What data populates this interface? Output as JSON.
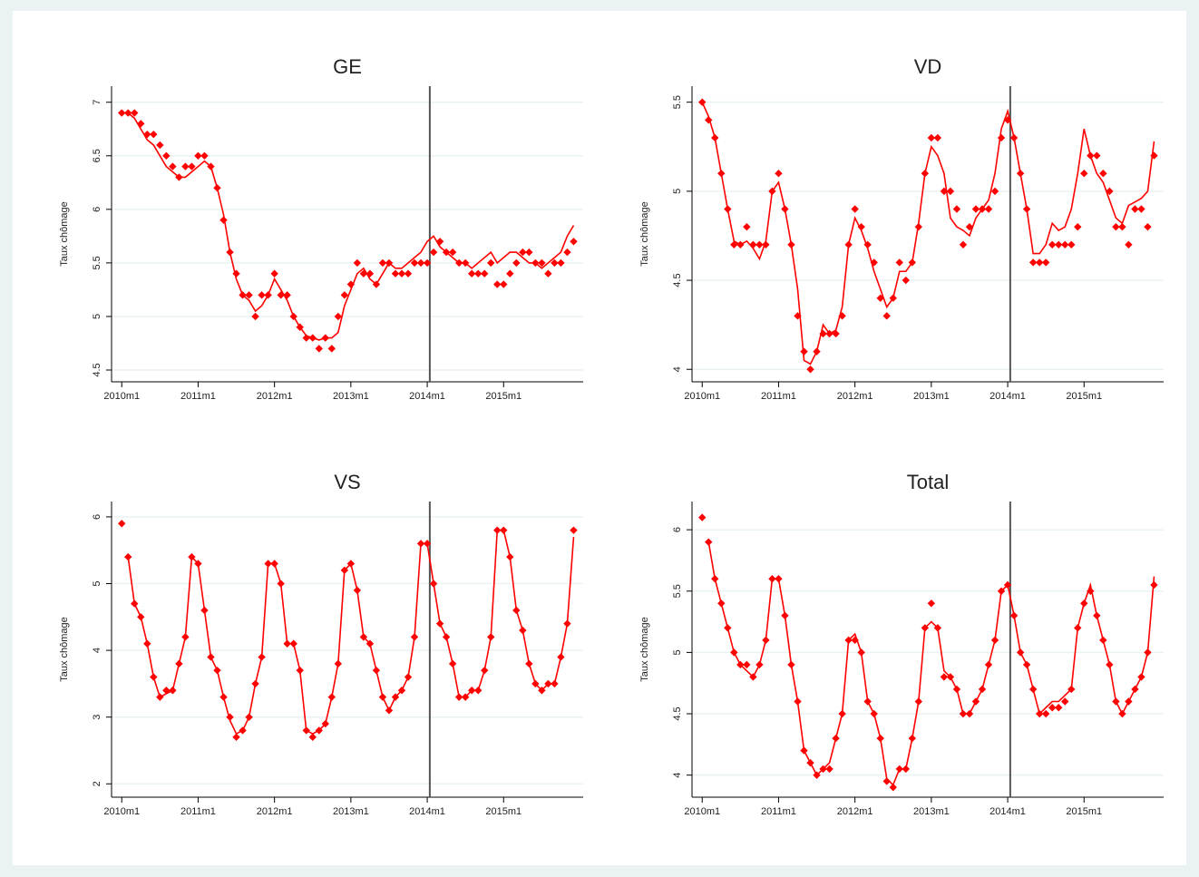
{
  "chart_data": [
    {
      "type": "line",
      "title": "GE",
      "ylabel": "Taux chômage",
      "x": [
        600,
        601,
        602,
        603,
        604,
        605,
        606,
        607,
        608,
        609,
        610,
        611,
        612,
        613,
        614,
        615,
        616,
        617,
        618,
        619,
        620,
        621,
        622,
        623,
        624,
        625,
        626,
        627,
        628,
        629,
        630,
        631,
        632,
        633,
        634,
        635,
        636,
        637,
        638,
        639,
        640,
        641,
        642,
        643,
        644,
        645,
        646,
        647,
        648,
        649,
        650,
        651,
        652,
        653,
        654,
        655,
        656,
        657,
        658,
        659,
        660,
        661,
        662,
        663,
        664,
        665,
        666,
        667,
        668,
        669,
        670,
        671
      ],
      "series": [
        {
          "style": "diamond",
          "color": "#ff0000",
          "values": [
            6.9,
            6.9,
            6.9,
            6.8,
            6.7,
            6.7,
            6.6,
            6.5,
            6.4,
            6.3,
            6.4,
            6.4,
            6.5,
            6.5,
            6.4,
            6.2,
            5.9,
            5.6,
            5.4,
            5.2,
            5.2,
            5.0,
            5.2,
            5.2,
            5.4,
            5.2,
            5.2,
            5.0,
            4.9,
            4.8,
            4.8,
            4.7,
            4.8,
            4.7,
            5.0,
            5.2,
            5.3,
            5.5,
            5.4,
            5.4,
            5.3,
            5.5,
            5.5,
            5.4,
            5.4,
            5.4,
            5.5,
            5.5,
            5.5,
            5.6,
            5.7,
            5.6,
            5.6,
            5.5,
            5.5,
            5.4,
            5.4,
            5.4,
            5.5,
            5.3,
            5.3,
            5.4,
            5.5,
            5.6,
            5.6,
            5.5,
            5.5,
            5.4,
            5.5,
            5.5,
            5.6,
            5.7
          ]
        },
        {
          "style": "line",
          "color": "#ff0000",
          "values": [
            6.9,
            6.9,
            6.85,
            6.75,
            6.65,
            6.6,
            6.5,
            6.4,
            6.35,
            6.3,
            6.3,
            6.35,
            6.4,
            6.45,
            6.4,
            6.2,
            5.95,
            5.6,
            5.35,
            5.2,
            5.15,
            5.05,
            5.1,
            5.2,
            5.35,
            5.25,
            5.15,
            5.0,
            4.9,
            4.82,
            4.8,
            4.78,
            4.8,
            4.8,
            4.85,
            5.1,
            5.25,
            5.4,
            5.45,
            5.35,
            5.3,
            5.4,
            5.5,
            5.45,
            5.45,
            5.5,
            5.55,
            5.6,
            5.7,
            5.75,
            5.65,
            5.6,
            5.55,
            5.5,
            5.5,
            5.45,
            5.5,
            5.55,
            5.6,
            5.5,
            5.55,
            5.6,
            5.6,
            5.55,
            5.5,
            5.5,
            5.45,
            5.5,
            5.55,
            5.6,
            5.75,
            5.85
          ]
        }
      ],
      "xlim": [
        598.4,
        672.5
      ],
      "xticks": [
        {
          "value": 600,
          "label": "2010m1"
        },
        {
          "value": 612,
          "label": "2011m1"
        },
        {
          "value": 624,
          "label": "2012m1"
        },
        {
          "value": 636,
          "label": "2013m1"
        },
        {
          "value": 648,
          "label": "2014m1"
        },
        {
          "value": 660,
          "label": "2015m1"
        }
      ],
      "ylim": [
        4.39,
        7.15
      ],
      "yticks": [
        4.5,
        5,
        5.5,
        6,
        6.5,
        7
      ],
      "grid": true,
      "vline": 648.4
    },
    {
      "type": "line",
      "title": "VD",
      "ylabel": "Taux chômage",
      "x": [
        600,
        601,
        602,
        603,
        604,
        605,
        606,
        607,
        608,
        609,
        610,
        611,
        612,
        613,
        614,
        615,
        616,
        617,
        618,
        619,
        620,
        621,
        622,
        623,
        624,
        625,
        626,
        627,
        628,
        629,
        630,
        631,
        632,
        633,
        634,
        635,
        636,
        637,
        638,
        639,
        640,
        641,
        642,
        643,
        644,
        645,
        646,
        647,
        648,
        649,
        650,
        651,
        652,
        653,
        654,
        655,
        656,
        657,
        658,
        659,
        660,
        661,
        662,
        663,
        664,
        665,
        666,
        667,
        668,
        669,
        670,
        671
      ],
      "series": [
        {
          "style": "diamond",
          "color": "#ff0000",
          "values": [
            5.5,
            5.4,
            5.3,
            5.1,
            4.9,
            4.7,
            4.7,
            4.8,
            4.7,
            4.7,
            4.7,
            5.0,
            5.1,
            4.9,
            4.7,
            4.3,
            4.1,
            4.0,
            4.1,
            4.2,
            4.2,
            4.2,
            4.3,
            4.7,
            4.9,
            4.8,
            4.7,
            4.6,
            4.4,
            4.3,
            4.4,
            4.6,
            4.5,
            4.6,
            4.8,
            5.1,
            5.3,
            5.3,
            5.0,
            5.0,
            4.9,
            4.7,
            4.8,
            4.9,
            4.9,
            4.9,
            5.0,
            5.3,
            5.4,
            5.3,
            5.1,
            4.9,
            4.6,
            4.6,
            4.6,
            4.7,
            4.7,
            4.7,
            4.7,
            4.8,
            5.1,
            5.2,
            5.2,
            5.1,
            5.0,
            4.8,
            4.8,
            4.7,
            4.9,
            4.9,
            4.8,
            5.2
          ]
        },
        {
          "style": "line",
          "color": "#ff0000",
          "values": [
            5.5,
            5.42,
            5.3,
            5.1,
            4.9,
            4.72,
            4.7,
            4.72,
            4.68,
            4.62,
            4.72,
            5.0,
            5.05,
            4.9,
            4.7,
            4.45,
            4.05,
            4.03,
            4.1,
            4.25,
            4.2,
            4.22,
            4.35,
            4.7,
            4.85,
            4.78,
            4.68,
            4.55,
            4.45,
            4.35,
            4.4,
            4.55,
            4.55,
            4.6,
            4.82,
            5.1,
            5.25,
            5.2,
            5.1,
            4.85,
            4.8,
            4.78,
            4.75,
            4.85,
            4.9,
            4.95,
            5.1,
            5.35,
            5.45,
            5.3,
            5.1,
            4.9,
            4.65,
            4.65,
            4.7,
            4.82,
            4.78,
            4.8,
            4.9,
            5.1,
            5.35,
            5.2,
            5.1,
            5.05,
            4.95,
            4.85,
            4.82,
            4.92,
            4.94,
            4.96,
            5.0,
            5.28
          ]
        }
      ],
      "xlim": [
        598.4,
        672.5
      ],
      "xticks": [
        {
          "value": 600,
          "label": "2010m1"
        },
        {
          "value": 612,
          "label": "2011m1"
        },
        {
          "value": 624,
          "label": "2012m1"
        },
        {
          "value": 636,
          "label": "2013m1"
        },
        {
          "value": 648,
          "label": "2014m1"
        },
        {
          "value": 660,
          "label": "2015m1"
        }
      ],
      "ylim": [
        3.93,
        5.59
      ],
      "yticks": [
        4,
        4.5,
        5,
        5.5
      ],
      "grid": true,
      "vline": 648.4
    },
    {
      "type": "line",
      "title": "VS",
      "ylabel": "Taux chômage",
      "x": [
        600,
        601,
        602,
        603,
        604,
        605,
        606,
        607,
        608,
        609,
        610,
        611,
        612,
        613,
        614,
        615,
        616,
        617,
        618,
        619,
        620,
        621,
        622,
        623,
        624,
        625,
        626,
        627,
        628,
        629,
        630,
        631,
        632,
        633,
        634,
        635,
        636,
        637,
        638,
        639,
        640,
        641,
        642,
        643,
        644,
        645,
        646,
        647,
        648,
        649,
        650,
        651,
        652,
        653,
        654,
        655,
        656,
        657,
        658,
        659,
        660,
        661,
        662,
        663,
        664,
        665,
        666,
        667,
        668,
        669,
        670,
        671
      ],
      "series": [
        {
          "style": "diamond",
          "color": "#ff0000",
          "values": [
            5.9,
            5.4,
            4.7,
            4.5,
            4.1,
            3.6,
            3.3,
            3.4,
            3.4,
            3.8,
            4.2,
            5.4,
            5.3,
            4.6,
            3.9,
            3.7,
            3.3,
            3.0,
            2.7,
            2.8,
            3.0,
            3.5,
            3.9,
            5.3,
            5.3,
            5.0,
            4.1,
            4.1,
            3.7,
            2.8,
            2.7,
            2.8,
            2.9,
            3.3,
            3.8,
            5.2,
            5.3,
            4.9,
            4.2,
            4.1,
            3.7,
            3.3,
            3.1,
            3.3,
            3.4,
            3.6,
            4.2,
            5.6,
            5.6,
            5.0,
            4.4,
            4.2,
            3.8,
            3.3,
            3.3,
            3.4,
            3.4,
            3.7,
            4.2,
            5.8,
            5.8,
            5.4,
            4.6,
            4.3,
            3.8,
            3.5,
            3.4,
            3.5,
            3.5,
            3.9,
            4.4,
            5.8
          ]
        },
        {
          "style": "line",
          "color": "#ff0000",
          "values": [
            null,
            5.4,
            4.7,
            4.5,
            4.1,
            3.6,
            3.3,
            3.35,
            3.4,
            3.8,
            4.2,
            5.4,
            5.3,
            4.6,
            3.9,
            3.7,
            3.3,
            2.95,
            2.75,
            2.8,
            3.0,
            3.5,
            3.9,
            5.3,
            5.3,
            5.0,
            4.1,
            4.1,
            3.7,
            2.8,
            2.75,
            2.8,
            2.9,
            3.3,
            3.8,
            5.2,
            5.3,
            4.9,
            4.2,
            4.1,
            3.7,
            3.3,
            3.1,
            3.3,
            3.4,
            3.6,
            4.2,
            5.6,
            5.6,
            5.0,
            4.4,
            4.2,
            3.8,
            3.3,
            3.3,
            3.4,
            3.4,
            3.7,
            4.2,
            5.8,
            5.8,
            5.4,
            4.6,
            4.3,
            3.8,
            3.5,
            3.4,
            3.5,
            3.5,
            3.9,
            4.4,
            5.7
          ]
        }
      ],
      "xlim": [
        598.4,
        672.5
      ],
      "xticks": [
        {
          "value": 600,
          "label": "2010m1"
        },
        {
          "value": 612,
          "label": "2011m1"
        },
        {
          "value": 624,
          "label": "2012m1"
        },
        {
          "value": 636,
          "label": "2013m1"
        },
        {
          "value": 648,
          "label": "2014m1"
        },
        {
          "value": 660,
          "label": "2015m1"
        }
      ],
      "ylim": [
        1.8,
        6.23
      ],
      "yticks": [
        2,
        3,
        4,
        5,
        6
      ],
      "grid": true,
      "vline": 648.4
    },
    {
      "type": "line",
      "title": "Total",
      "ylabel": "Taux chômage",
      "x": [
        600,
        601,
        602,
        603,
        604,
        605,
        606,
        607,
        608,
        609,
        610,
        611,
        612,
        613,
        614,
        615,
        616,
        617,
        618,
        619,
        620,
        621,
        622,
        623,
        624,
        625,
        626,
        627,
        628,
        629,
        630,
        631,
        632,
        633,
        634,
        635,
        636,
        637,
        638,
        639,
        640,
        641,
        642,
        643,
        644,
        645,
        646,
        647,
        648,
        649,
        650,
        651,
        652,
        653,
        654,
        655,
        656,
        657,
        658,
        659,
        660,
        661,
        662,
        663,
        664,
        665,
        666,
        667,
        668,
        669,
        670,
        671
      ],
      "series": [
        {
          "style": "diamond",
          "color": "#ff0000",
          "values": [
            6.1,
            5.9,
            5.6,
            5.4,
            5.2,
            5.0,
            4.9,
            4.9,
            4.8,
            4.9,
            5.1,
            5.6,
            5.6,
            5.3,
            4.9,
            4.6,
            4.2,
            4.1,
            4.0,
            4.05,
            4.05,
            4.3,
            4.5,
            5.1,
            5.1,
            5.0,
            4.6,
            4.5,
            4.3,
            3.95,
            3.9,
            4.05,
            4.05,
            4.3,
            4.6,
            5.2,
            5.4,
            5.2,
            4.8,
            4.8,
            4.7,
            4.5,
            4.5,
            4.6,
            4.7,
            4.9,
            5.1,
            5.5,
            5.55,
            5.3,
            5.0,
            4.9,
            4.7,
            4.5,
            4.5,
            4.55,
            4.55,
            4.6,
            4.7,
            5.2,
            5.4,
            5.5,
            5.3,
            5.1,
            4.9,
            4.6,
            4.5,
            4.6,
            4.7,
            4.8,
            5.0,
            5.55
          ]
        },
        {
          "style": "line",
          "color": "#ff0000",
          "values": [
            null,
            5.9,
            5.6,
            5.4,
            5.2,
            5.0,
            4.9,
            4.85,
            4.8,
            4.9,
            5.1,
            5.6,
            5.6,
            5.3,
            4.9,
            4.6,
            4.2,
            4.1,
            4.0,
            4.05,
            4.1,
            4.3,
            4.5,
            5.1,
            5.15,
            5.0,
            4.6,
            4.5,
            4.3,
            3.97,
            3.92,
            4.05,
            4.05,
            4.3,
            4.6,
            5.2,
            5.25,
            5.2,
            4.85,
            4.8,
            4.7,
            4.5,
            4.5,
            4.6,
            4.7,
            4.9,
            5.1,
            5.5,
            5.55,
            5.3,
            5.0,
            4.9,
            4.7,
            4.5,
            4.55,
            4.6,
            4.6,
            4.65,
            4.7,
            5.2,
            5.4,
            5.55,
            5.3,
            5.1,
            4.9,
            4.6,
            4.5,
            4.6,
            4.7,
            4.8,
            5.0,
            5.62
          ]
        }
      ],
      "xlim": [
        598.4,
        672.5
      ],
      "xticks": [
        {
          "value": 600,
          "label": "2010m1"
        },
        {
          "value": 612,
          "label": "2011m1"
        },
        {
          "value": 624,
          "label": "2012m1"
        },
        {
          "value": 636,
          "label": "2013m1"
        },
        {
          "value": 648,
          "label": "2014m1"
        },
        {
          "value": 660,
          "label": "2015m1"
        }
      ],
      "ylim": [
        3.82,
        6.23
      ],
      "yticks": [
        4,
        4.5,
        5,
        5.5,
        6
      ],
      "grid": true,
      "vline": 648.4
    }
  ]
}
